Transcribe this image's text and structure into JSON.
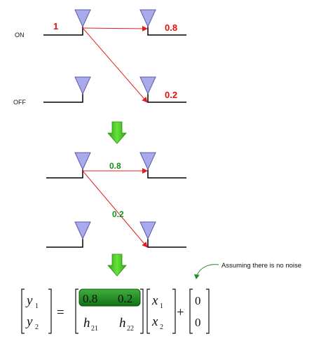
{
  "labels": {
    "on": "ON",
    "off": "OFF"
  },
  "top_diagram": {
    "tx_power_on": "1",
    "gain_direct": "0.8",
    "gain_cross": "0.2"
  },
  "middle_diagram": {
    "gain_direct": "0.8",
    "gain_cross": "0.2"
  },
  "annotation": {
    "text": "Assuming there is no noise"
  },
  "equation": {
    "y1": "y",
    "y1_sub": "1",
    "y2": "y",
    "y2_sub": "2",
    "equals": "=",
    "h11": "0.8",
    "h12": "0.2",
    "h21": "h",
    "h21_sub": "21",
    "h22": "h",
    "h22_sub": "22",
    "x1": "x",
    "x1_sub": "1",
    "x2": "x",
    "x2_sub": "2",
    "plus": "+",
    "n1": "0",
    "n2": "0"
  },
  "colors": {
    "antenna_fill": "#a9a9ee",
    "antenna_stroke": "#5a5aa8",
    "link": "#e02020",
    "red_text": "#e01010",
    "green_text": "#1a8a1a",
    "arrow_green": "#39c21a",
    "highlight": "#1f8a1f"
  }
}
